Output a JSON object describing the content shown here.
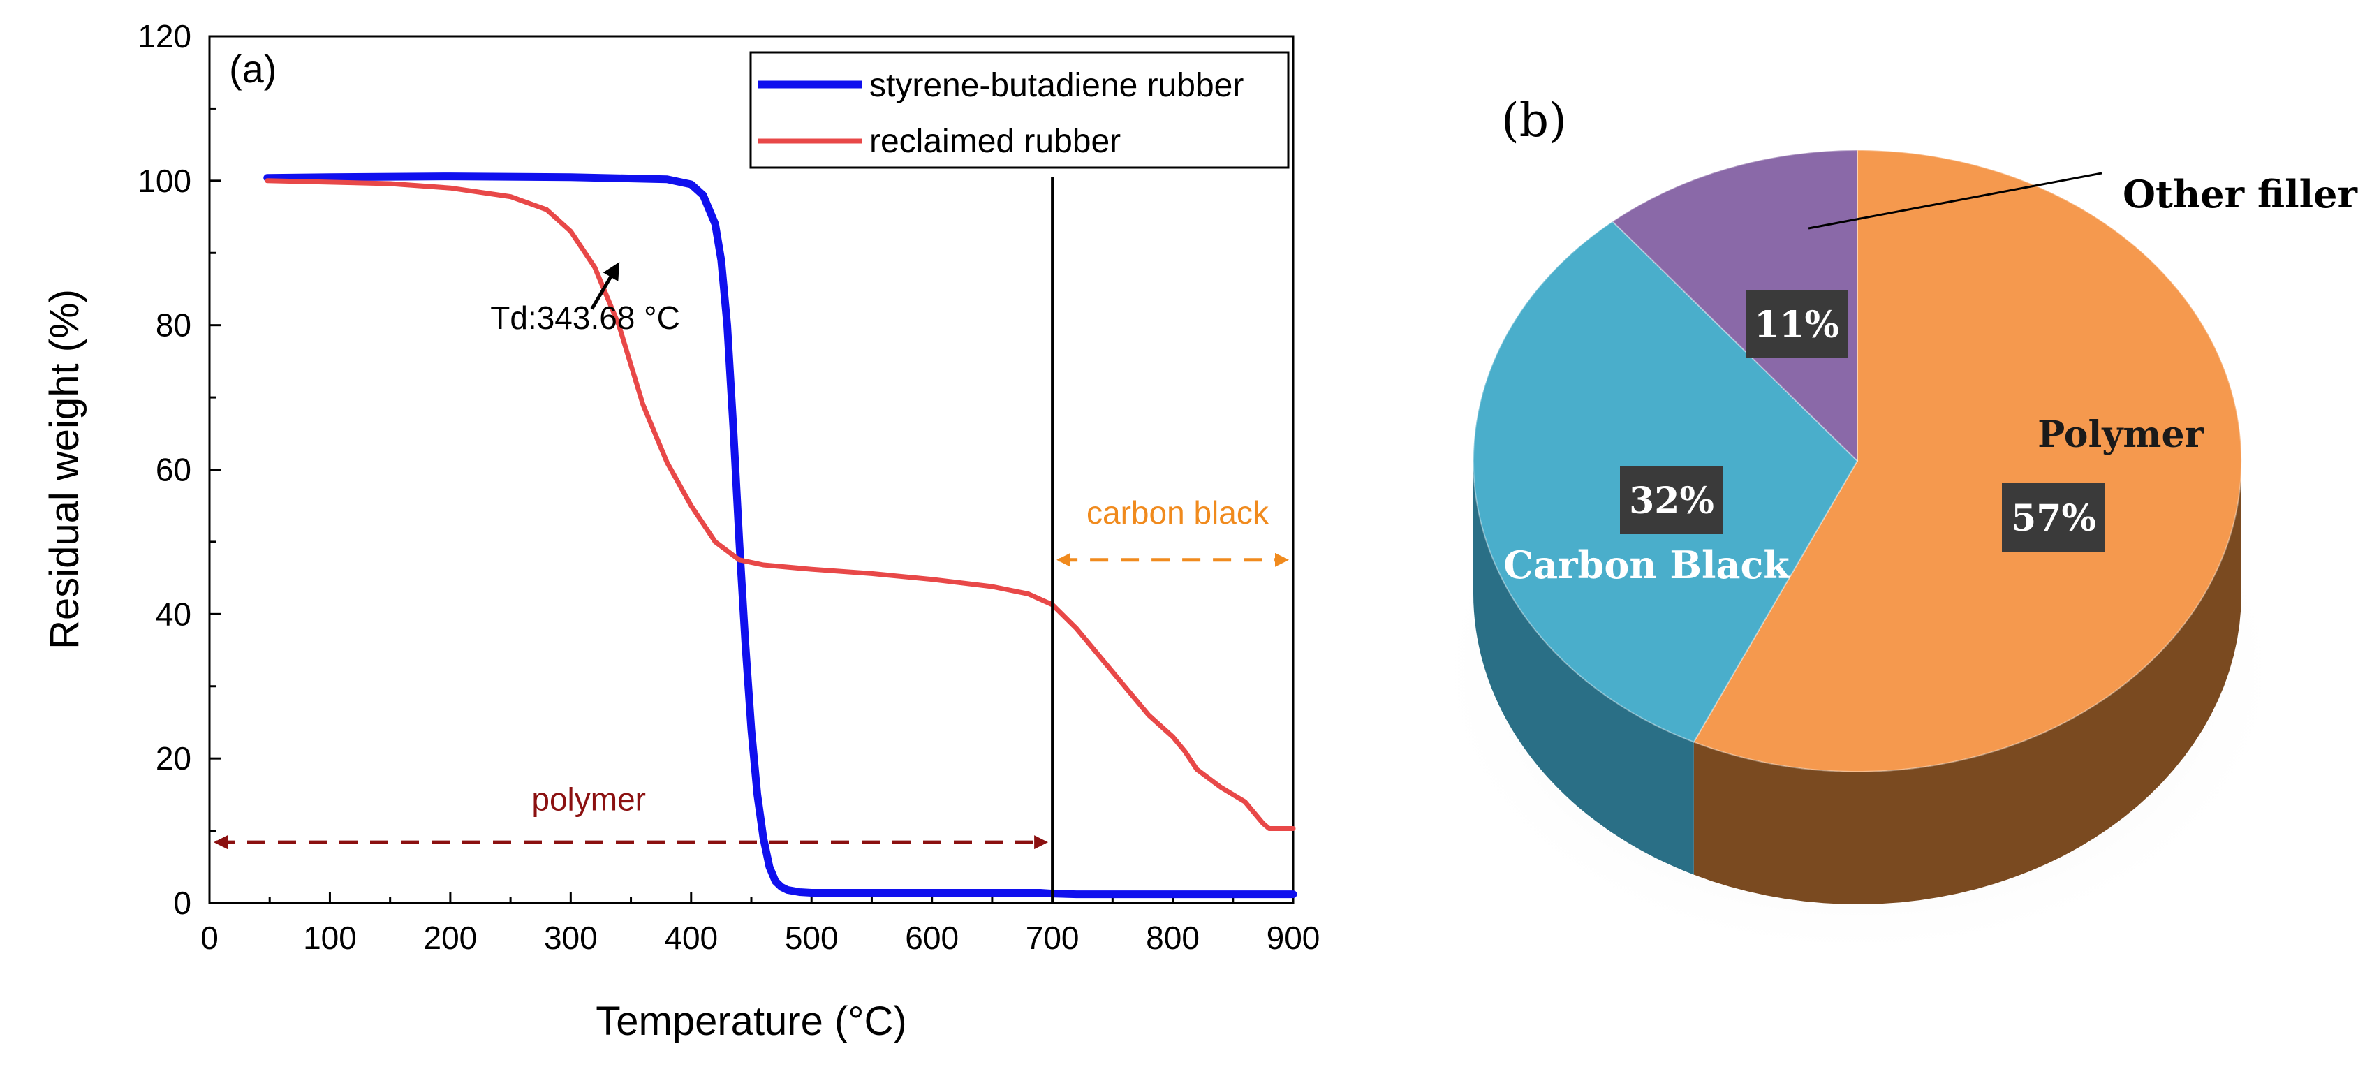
{
  "chart_data": [
    {
      "panel_label": "(a)",
      "type": "line",
      "xlabel": "Temperature (°C)",
      "ylabel": "Residual weight (%)",
      "xlim": [
        0,
        900
      ],
      "ylim": [
        0,
        120
      ],
      "xticks": [
        0,
        100,
        200,
        300,
        400,
        500,
        600,
        700,
        800,
        900
      ],
      "yticks": [
        0,
        20,
        40,
        60,
        80,
        100,
        120
      ],
      "legend_position": "top-right",
      "series": [
        {
          "name": "styrene-butadiene rubber",
          "color": "#1010ee",
          "x": [
            48,
            100,
            200,
            300,
            380,
            400,
            410,
            420,
            425,
            430,
            435,
            440,
            445,
            450,
            455,
            460,
            465,
            470,
            475,
            480,
            490,
            500,
            600,
            690,
            700,
            720,
            800,
            900
          ],
          "y": [
            100.4,
            100.5,
            100.6,
            100.5,
            100.2,
            99.5,
            98.0,
            94.0,
            89.0,
            80.0,
            66.0,
            50.0,
            36.0,
            24.0,
            15.0,
            9.0,
            5.0,
            3.0,
            2.2,
            1.8,
            1.5,
            1.4,
            1.4,
            1.4,
            1.3,
            1.2,
            1.2,
            1.2
          ]
        },
        {
          "name": "reclaimed rubber",
          "color": "#e84848",
          "x": [
            48,
            100,
            150,
            200,
            250,
            280,
            300,
            320,
            340,
            360,
            380,
            400,
            420,
            440,
            460,
            500,
            550,
            600,
            650,
            680,
            700,
            720,
            750,
            780,
            800,
            810,
            820,
            840,
            860,
            875,
            880,
            900
          ],
          "y": [
            100.0,
            99.8,
            99.6,
            99.0,
            97.8,
            96.0,
            93.0,
            88.0,
            80.0,
            69.0,
            61.0,
            55.0,
            50.0,
            47.5,
            46.8,
            46.2,
            45.6,
            44.8,
            43.8,
            42.8,
            41.3,
            38.0,
            32.0,
            26.0,
            23.0,
            21.0,
            18.5,
            16.0,
            14.0,
            11.0,
            10.3,
            10.3
          ]
        }
      ],
      "annotations": {
        "td_label": "Td:343.68 °C",
        "td_point": [
          343.68,
          89.5
        ],
        "divider_x": 700,
        "carbon_black_label": "carbon black",
        "carbon_black_range": [
          700,
          900
        ],
        "carbon_black_y": 47.5,
        "carbon_black_color": "#f08a1d",
        "polymer_label": "polymer",
        "polymer_range": [
          0,
          700
        ],
        "polymer_y": 8.4,
        "polymer_color": "#8b1010"
      }
    },
    {
      "panel_label": "(b)",
      "type": "pie",
      "slices": [
        {
          "label": "Polymer",
          "value": 57,
          "value_label": "57%",
          "color": "#f5994e",
          "side_color": "#7a4a20"
        },
        {
          "label": "Carbon Black",
          "value": 32,
          "value_label": "32%",
          "color": "#4aaecb",
          "side_color": "#2a6f86"
        },
        {
          "label": "Other filler",
          "value": 11,
          "value_label": "11%",
          "color": "#8a69a8",
          "side_color": "#5a4370"
        }
      ]
    }
  ]
}
